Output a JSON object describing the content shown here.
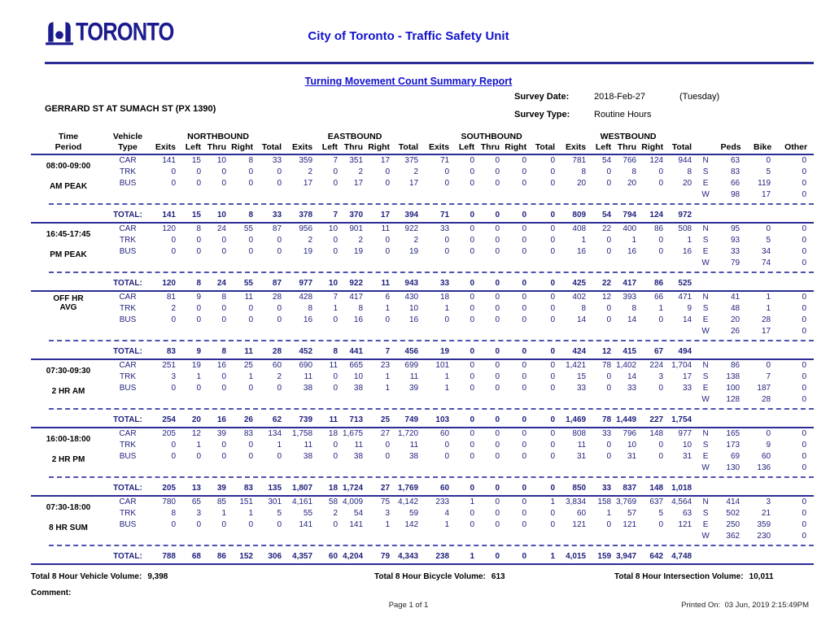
{
  "header": {
    "logo_text": "TORONTO",
    "title": "City of Toronto - Traffic Safety Unit",
    "report_title": "Turning Movement Count Summary Report",
    "location": "GERRARD ST AT SUMACH ST (PX 1390)",
    "survey_date_label": "Survey Date:",
    "survey_date": "2018-Feb-27",
    "survey_day": "(Tuesday)",
    "survey_type_label": "Survey Type:",
    "survey_type": "Routine Hours"
  },
  "table": {
    "time_header": [
      "Time",
      "Period"
    ],
    "vehicle_header": [
      "Vehicle",
      "Type"
    ],
    "groups": [
      "NORTHBOUND",
      "EASTBOUND",
      "SOUTHBOUND",
      "WESTBOUND"
    ],
    "sub_cols": [
      "Exits",
      "Left",
      "Thru",
      "Right",
      "Total"
    ],
    "tail_cols": [
      "Peds",
      "Bike",
      "Other"
    ],
    "total_label": "TOTAL:",
    "blocks": [
      {
        "period": "08:00-09:00",
        "label": "AM PEAK",
        "compact": false,
        "rows": [
          {
            "vehicle": "CAR",
            "values": [
              "141",
              "15",
              "10",
              "8",
              "33",
              "359",
              "7",
              "351",
              "17",
              "375",
              "71",
              "0",
              "0",
              "0",
              "0",
              "781",
              "54",
              "766",
              "124",
              "944"
            ],
            "dir": "N",
            "peds": "63",
            "bike": "0",
            "other": "0"
          },
          {
            "vehicle": "TRK",
            "values": [
              "0",
              "0",
              "0",
              "0",
              "0",
              "2",
              "0",
              "2",
              "0",
              "2",
              "0",
              "0",
              "0",
              "0",
              "0",
              "8",
              "0",
              "8",
              "0",
              "8"
            ],
            "dir": "S",
            "peds": "83",
            "bike": "5",
            "other": "0"
          },
          {
            "vehicle": "BUS",
            "values": [
              "0",
              "0",
              "0",
              "0",
              "0",
              "17",
              "0",
              "17",
              "0",
              "17",
              "0",
              "0",
              "0",
              "0",
              "0",
              "20",
              "0",
              "20",
              "0",
              "20"
            ],
            "dir": "E",
            "peds": "66",
            "bike": "119",
            "other": "0"
          },
          {
            "vehicle": "",
            "values": [],
            "dir": "W",
            "peds": "98",
            "bike": "17",
            "other": "0"
          }
        ],
        "total": [
          "141",
          "15",
          "10",
          "8",
          "33",
          "378",
          "7",
          "370",
          "17",
          "394",
          "71",
          "0",
          "0",
          "0",
          "0",
          "809",
          "54",
          "794",
          "124",
          "972"
        ]
      },
      {
        "period": "16:45-17:45",
        "label": "PM PEAK",
        "compact": false,
        "rows": [
          {
            "vehicle": "CAR",
            "values": [
              "120",
              "8",
              "24",
              "55",
              "87",
              "956",
              "10",
              "901",
              "11",
              "922",
              "33",
              "0",
              "0",
              "0",
              "0",
              "408",
              "22",
              "400",
              "86",
              "508"
            ],
            "dir": "N",
            "peds": "95",
            "bike": "0",
            "other": "0"
          },
          {
            "vehicle": "TRK",
            "values": [
              "0",
              "0",
              "0",
              "0",
              "0",
              "2",
              "0",
              "2",
              "0",
              "2",
              "0",
              "0",
              "0",
              "0",
              "0",
              "1",
              "0",
              "1",
              "0",
              "1"
            ],
            "dir": "S",
            "peds": "93",
            "bike": "5",
            "other": "0"
          },
          {
            "vehicle": "BUS",
            "values": [
              "0",
              "0",
              "0",
              "0",
              "0",
              "19",
              "0",
              "19",
              "0",
              "19",
              "0",
              "0",
              "0",
              "0",
              "0",
              "16",
              "0",
              "16",
              "0",
              "16"
            ],
            "dir": "E",
            "peds": "33",
            "bike": "34",
            "other": "0"
          },
          {
            "vehicle": "",
            "values": [],
            "dir": "W",
            "peds": "79",
            "bike": "74",
            "other": "0"
          }
        ],
        "total": [
          "120",
          "8",
          "24",
          "55",
          "87",
          "977",
          "10",
          "922",
          "11",
          "943",
          "33",
          "0",
          "0",
          "0",
          "0",
          "425",
          "22",
          "417",
          "86",
          "525"
        ]
      },
      {
        "period": "OFF HR",
        "label": "AVG",
        "compact": true,
        "rows": [
          {
            "vehicle": "CAR",
            "values": [
              "81",
              "9",
              "8",
              "11",
              "28",
              "428",
              "7",
              "417",
              "6",
              "430",
              "18",
              "0",
              "0",
              "0",
              "0",
              "402",
              "12",
              "393",
              "66",
              "471"
            ],
            "dir": "N",
            "peds": "41",
            "bike": "1",
            "other": "0"
          },
          {
            "vehicle": "TRK",
            "values": [
              "2",
              "0",
              "0",
              "0",
              "0",
              "8",
              "1",
              "8",
              "1",
              "10",
              "1",
              "0",
              "0",
              "0",
              "0",
              "8",
              "0",
              "8",
              "1",
              "9"
            ],
            "dir": "S",
            "peds": "48",
            "bike": "1",
            "other": "0"
          },
          {
            "vehicle": "BUS",
            "values": [
              "0",
              "0",
              "0",
              "0",
              "0",
              "16",
              "0",
              "16",
              "0",
              "16",
              "0",
              "0",
              "0",
              "0",
              "0",
              "14",
              "0",
              "14",
              "0",
              "14"
            ],
            "dir": "E",
            "peds": "20",
            "bike": "28",
            "other": "0"
          },
          {
            "vehicle": "",
            "values": [],
            "dir": "W",
            "peds": "26",
            "bike": "17",
            "other": "0"
          }
        ],
        "total": [
          "83",
          "9",
          "8",
          "11",
          "28",
          "452",
          "8",
          "441",
          "7",
          "456",
          "19",
          "0",
          "0",
          "0",
          "0",
          "424",
          "12",
          "415",
          "67",
          "494"
        ]
      },
      {
        "period": "07:30-09:30",
        "label": "2 HR AM",
        "compact": false,
        "rows": [
          {
            "vehicle": "CAR",
            "values": [
              "251",
              "19",
              "16",
              "25",
              "60",
              "690",
              "11",
              "665",
              "23",
              "699",
              "101",
              "0",
              "0",
              "0",
              "0",
              "1,421",
              "78",
              "1,402",
              "224",
              "1,704"
            ],
            "dir": "N",
            "peds": "86",
            "bike": "0",
            "other": "0"
          },
          {
            "vehicle": "TRK",
            "values": [
              "3",
              "1",
              "0",
              "1",
              "2",
              "11",
              "0",
              "10",
              "1",
              "11",
              "1",
              "0",
              "0",
              "0",
              "0",
              "15",
              "0",
              "14",
              "3",
              "17"
            ],
            "dir": "S",
            "peds": "138",
            "bike": "7",
            "other": "0"
          },
          {
            "vehicle": "BUS",
            "values": [
              "0",
              "0",
              "0",
              "0",
              "0",
              "38",
              "0",
              "38",
              "1",
              "39",
              "1",
              "0",
              "0",
              "0",
              "0",
              "33",
              "0",
              "33",
              "0",
              "33"
            ],
            "dir": "E",
            "peds": "100",
            "bike": "187",
            "other": "0"
          },
          {
            "vehicle": "",
            "values": [],
            "dir": "W",
            "peds": "128",
            "bike": "28",
            "other": "0"
          }
        ],
        "total": [
          "254",
          "20",
          "16",
          "26",
          "62",
          "739",
          "11",
          "713",
          "25",
          "749",
          "103",
          "0",
          "0",
          "0",
          "0",
          "1,469",
          "78",
          "1,449",
          "227",
          "1,754"
        ]
      },
      {
        "period": "16:00-18:00",
        "label": "2 HR PM",
        "compact": false,
        "rows": [
          {
            "vehicle": "CAR",
            "values": [
              "205",
              "12",
              "39",
              "83",
              "134",
              "1,758",
              "18",
              "1,675",
              "27",
              "1,720",
              "60",
              "0",
              "0",
              "0",
              "0",
              "808",
              "33",
              "796",
              "148",
              "977"
            ],
            "dir": "N",
            "peds": "165",
            "bike": "0",
            "other": "0"
          },
          {
            "vehicle": "TRK",
            "values": [
              "0",
              "1",
              "0",
              "0",
              "1",
              "11",
              "0",
              "11",
              "0",
              "11",
              "0",
              "0",
              "0",
              "0",
              "0",
              "11",
              "0",
              "10",
              "0",
              "10"
            ],
            "dir": "S",
            "peds": "173",
            "bike": "9",
            "other": "0"
          },
          {
            "vehicle": "BUS",
            "values": [
              "0",
              "0",
              "0",
              "0",
              "0",
              "38",
              "0",
              "38",
              "0",
              "38",
              "0",
              "0",
              "0",
              "0",
              "0",
              "31",
              "0",
              "31",
              "0",
              "31"
            ],
            "dir": "E",
            "peds": "69",
            "bike": "60",
            "other": "0"
          },
          {
            "vehicle": "",
            "values": [],
            "dir": "W",
            "peds": "130",
            "bike": "136",
            "other": "0"
          }
        ],
        "total": [
          "205",
          "13",
          "39",
          "83",
          "135",
          "1,807",
          "18",
          "1,724",
          "27",
          "1,769",
          "60",
          "0",
          "0",
          "0",
          "0",
          "850",
          "33",
          "837",
          "148",
          "1,018"
        ]
      },
      {
        "period": "07:30-18:00",
        "label": "8 HR SUM",
        "compact": false,
        "rows": [
          {
            "vehicle": "CAR",
            "values": [
              "780",
              "65",
              "85",
              "151",
              "301",
              "4,161",
              "58",
              "4,009",
              "75",
              "4,142",
              "233",
              "1",
              "0",
              "0",
              "1",
              "3,834",
              "158",
              "3,769",
              "637",
              "4,564"
            ],
            "dir": "N",
            "peds": "414",
            "bike": "3",
            "other": "0"
          },
          {
            "vehicle": "TRK",
            "values": [
              "8",
              "3",
              "1",
              "1",
              "5",
              "55",
              "2",
              "54",
              "3",
              "59",
              "4",
              "0",
              "0",
              "0",
              "0",
              "60",
              "1",
              "57",
              "5",
              "63"
            ],
            "dir": "S",
            "peds": "502",
            "bike": "21",
            "other": "0"
          },
          {
            "vehicle": "BUS",
            "values": [
              "0",
              "0",
              "0",
              "0",
              "0",
              "141",
              "0",
              "141",
              "1",
              "142",
              "1",
              "0",
              "0",
              "0",
              "0",
              "121",
              "0",
              "121",
              "0",
              "121"
            ],
            "dir": "E",
            "peds": "250",
            "bike": "359",
            "other": "0"
          },
          {
            "vehicle": "",
            "values": [],
            "dir": "W",
            "peds": "362",
            "bike": "230",
            "other": "0"
          }
        ],
        "total": [
          "788",
          "68",
          "86",
          "152",
          "306",
          "4,357",
          "60",
          "4,204",
          "79",
          "4,343",
          "238",
          "1",
          "0",
          "0",
          "1",
          "4,015",
          "159",
          "3,947",
          "642",
          "4,748"
        ]
      }
    ]
  },
  "footer": {
    "vehicle_volume_label": "Total 8 Hour Vehicle Volume:",
    "vehicle_volume": "9,398",
    "bicycle_volume_label": "Total 8 Hour Bicycle Volume:",
    "bicycle_volume": "613",
    "intersection_volume_label": "Total 8 Hour Intersection Volume:",
    "intersection_volume": "10,011",
    "comment_label": "Comment:",
    "page_label": "Page 1 of 1",
    "printed_label": "Printed On:",
    "printed_value": "03 Jun, 2019   2:15:49PM"
  },
  "colors": {
    "brand_navy": "#1b1b8f",
    "title_blue": "#1212cc",
    "rule_navy": "#2c2c96",
    "rule_dashed": "#5050b0",
    "data_navy": "#1f1f7d"
  }
}
